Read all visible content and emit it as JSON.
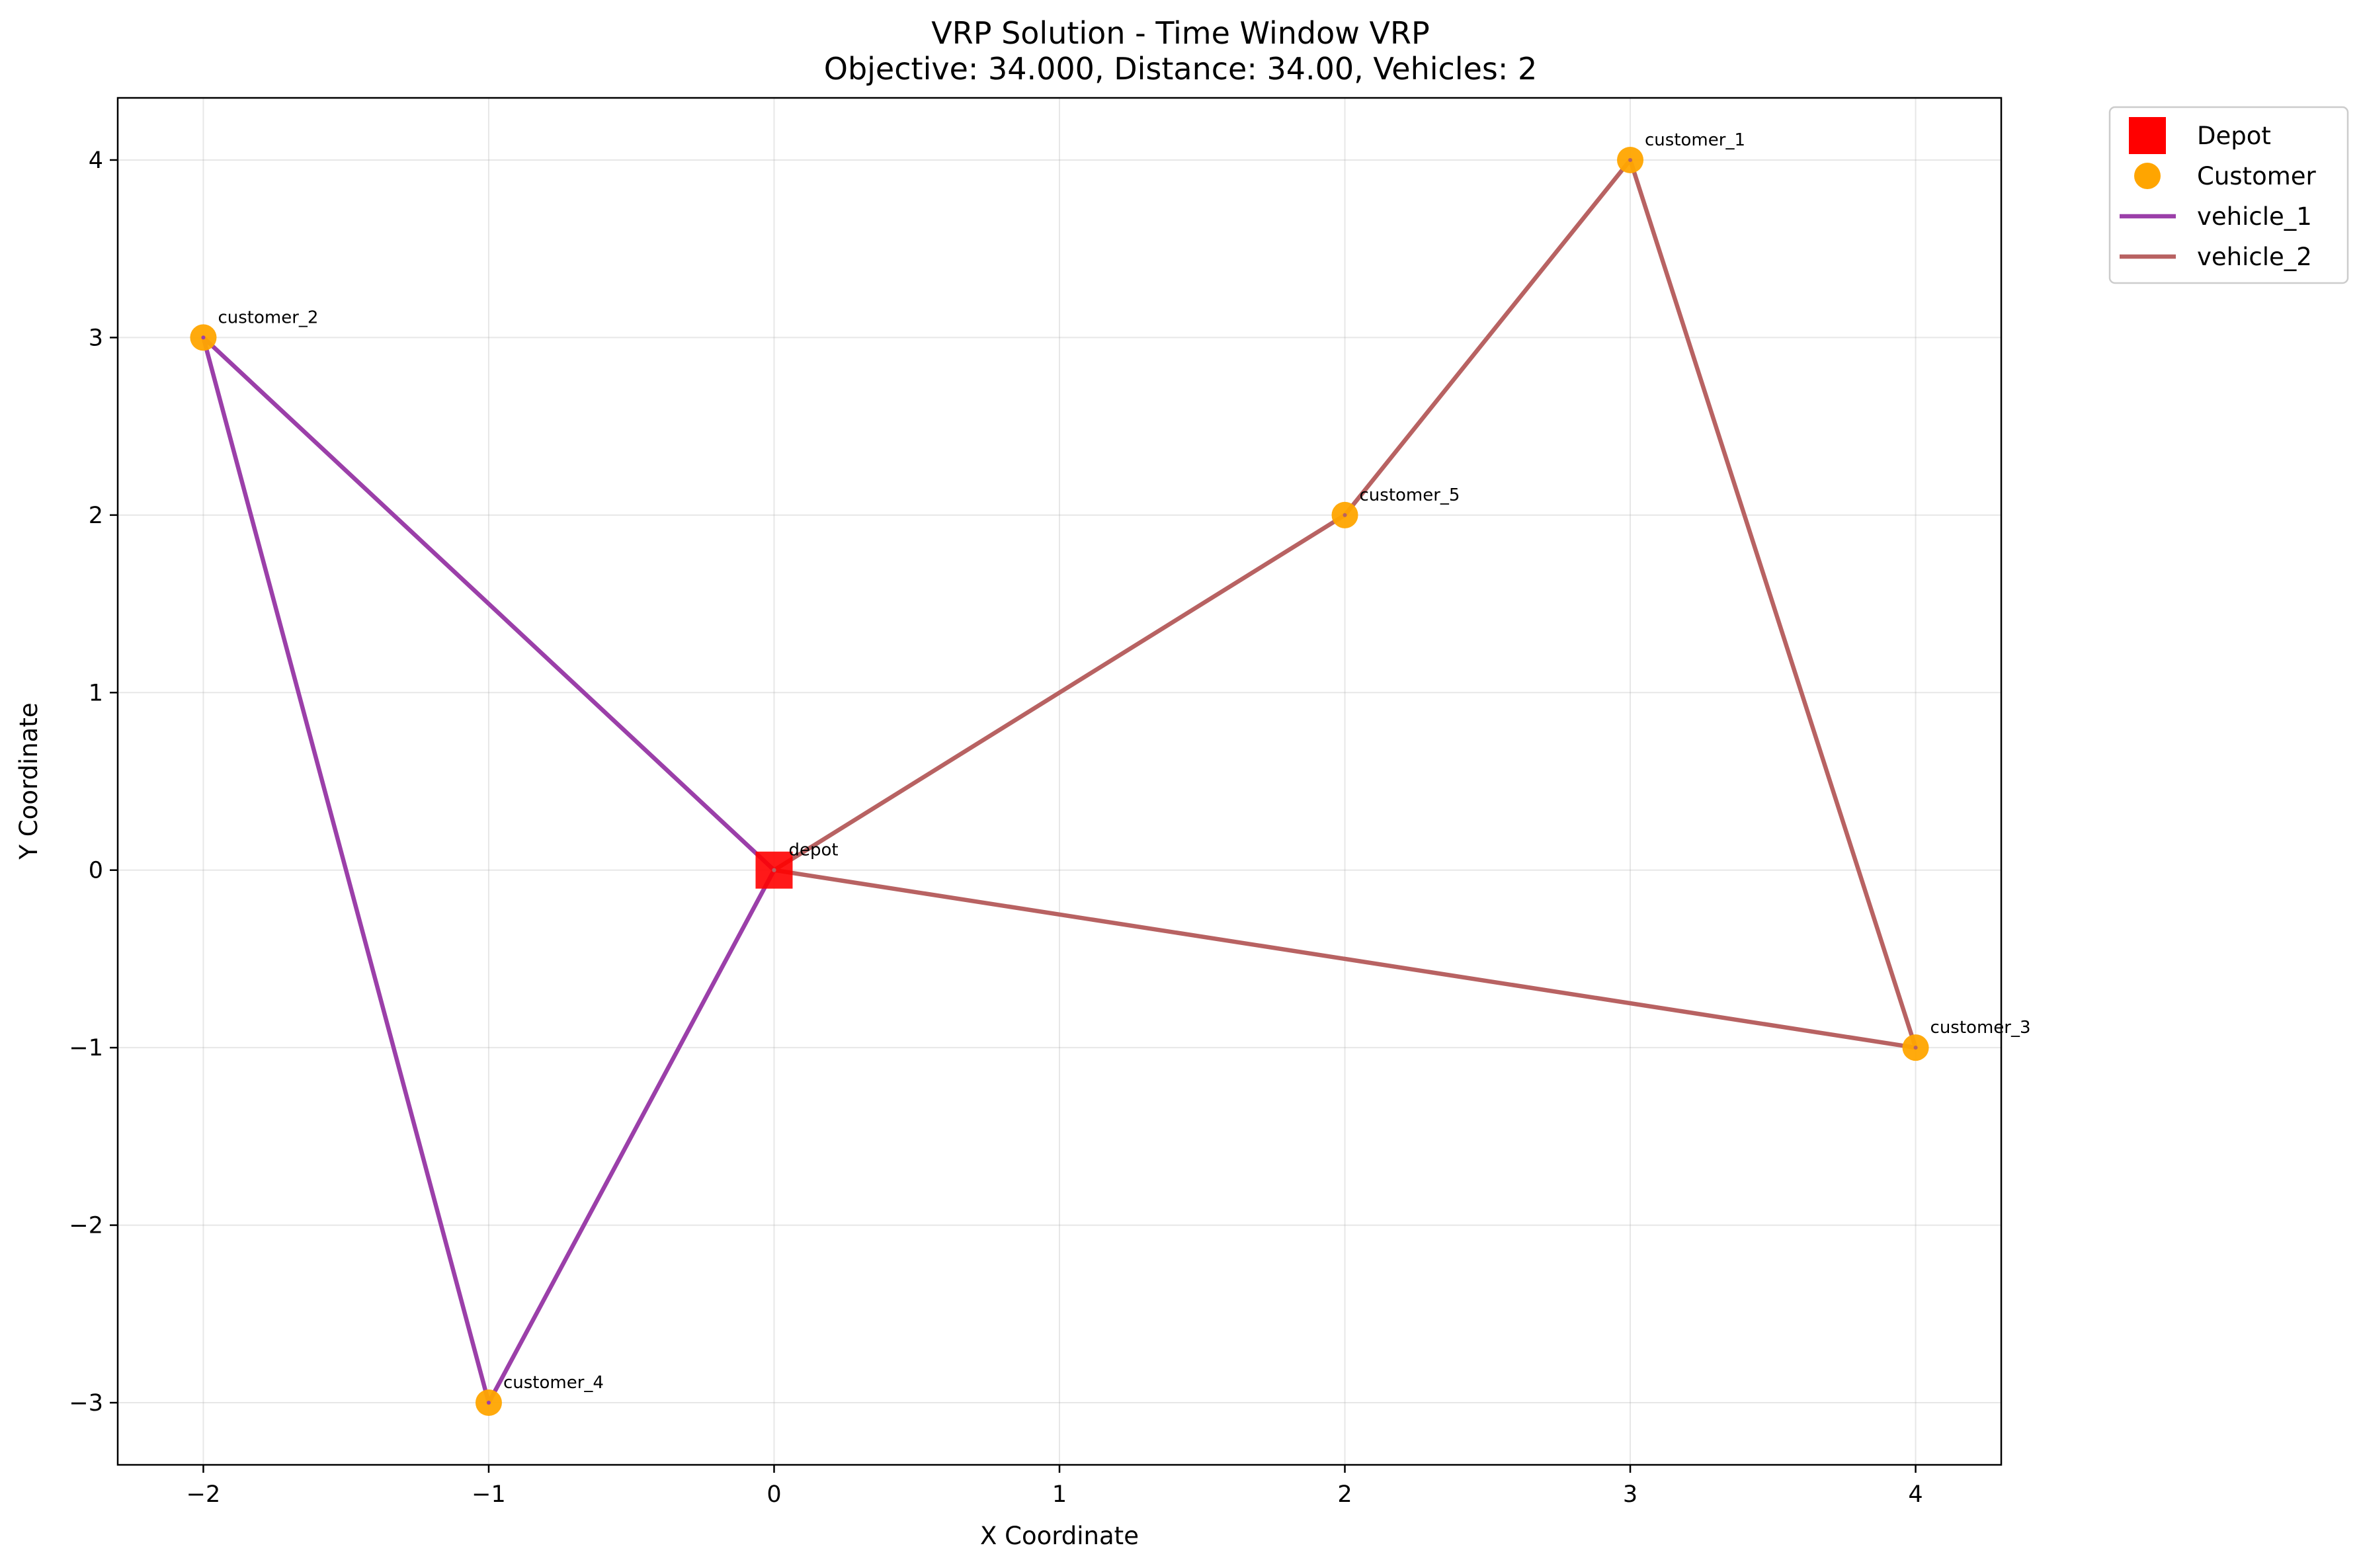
{
  "chart_data": {
    "type": "scatter",
    "title": "VRP Solution - Time Window VRP",
    "subtitle": "Objective: 34.000, Distance: 34.00, Vehicles: 2",
    "xlabel": "X Coordinate",
    "ylabel": "Y Coordinate",
    "xlim": [
      -2.3,
      4.3
    ],
    "ylim": [
      -3.35,
      4.35
    ],
    "xticks": [
      -2,
      -1,
      0,
      1,
      2,
      3,
      4
    ],
    "yticks": [
      -3,
      -2,
      -1,
      0,
      1,
      2,
      3,
      4
    ],
    "xtick_labels": [
      "−2",
      "−1",
      "0",
      "1",
      "2",
      "3",
      "4"
    ],
    "ytick_labels": [
      "−3",
      "−2",
      "−1",
      "0",
      "1",
      "2",
      "3",
      "4"
    ],
    "grid": true,
    "legend_position": "outside top-right",
    "depot": {
      "name": "depot",
      "x": 0,
      "y": 0,
      "color": "#ff0000"
    },
    "customers": [
      {
        "name": "customer_1",
        "x": 3,
        "y": 4
      },
      {
        "name": "customer_2",
        "x": -2,
        "y": 3
      },
      {
        "name": "customer_3",
        "x": 4,
        "y": -1
      },
      {
        "name": "customer_4",
        "x": -1,
        "y": -3
      },
      {
        "name": "customer_5",
        "x": 2,
        "y": 2
      }
    ],
    "customer_color": "#ffa500",
    "routes": [
      {
        "name": "vehicle_1",
        "color": "#9b3fa9",
        "path": [
          [
            0,
            0
          ],
          [
            -2,
            3
          ],
          [
            -1,
            -3
          ],
          [
            0,
            0
          ]
        ]
      },
      {
        "name": "vehicle_2",
        "color": "#b86262",
        "path": [
          [
            0,
            0
          ],
          [
            2,
            2
          ],
          [
            3,
            4
          ],
          [
            4,
            -1
          ],
          [
            0,
            0
          ]
        ]
      }
    ],
    "legend": [
      {
        "label": "Depot",
        "kind": "square",
        "color": "#ff0000"
      },
      {
        "label": "Customer",
        "kind": "circle",
        "color": "#ffa500"
      },
      {
        "label": "vehicle_1",
        "kind": "line",
        "color": "#9b3fa9"
      },
      {
        "label": "vehicle_2",
        "kind": "line",
        "color": "#b86262"
      }
    ]
  }
}
